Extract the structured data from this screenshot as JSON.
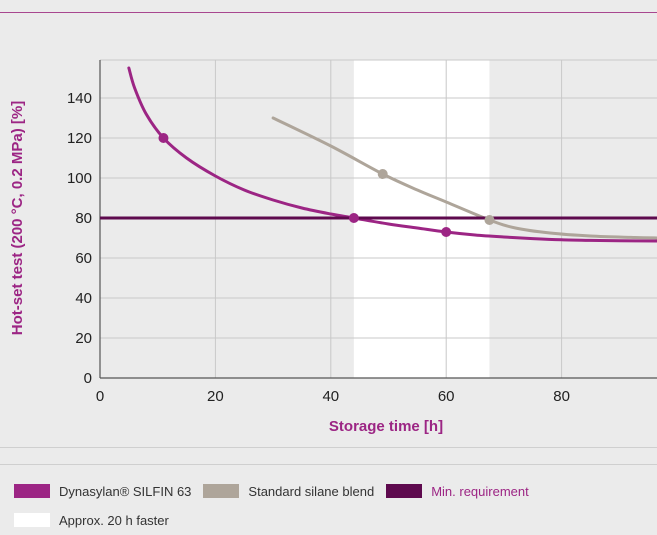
{
  "colors": {
    "background": "#ebebeb",
    "grid": "#c8c8c8",
    "purple": "#9c2584",
    "gray": "#aea59a",
    "dark_purple": "#5e0a4e",
    "highlight": "#ffffff",
    "rule_purple": "#a8478f",
    "rule_gray": "#cfcfcf"
  },
  "chart_data": {
    "type": "line",
    "xlabel": "Storage time [h]",
    "ylabel": "Hot-set test (200 °C, 0.2 MPa) [%]",
    "xlim": [
      0,
      97
    ],
    "ylim": [
      0,
      157
    ],
    "x_ticks": [
      0,
      20,
      40,
      60,
      80
    ],
    "y_ticks": [
      0,
      20,
      40,
      60,
      80,
      100,
      120,
      140
    ],
    "grid": true,
    "highlight_band": {
      "x": [
        44,
        67.5
      ],
      "label": "Approx. 20 h faster"
    },
    "series": [
      {
        "name": "Dynasylan® SILFIN 63",
        "color": "#9c2584",
        "curve": [
          [
            5,
            155
          ],
          [
            6,
            145
          ],
          [
            8,
            132
          ],
          [
            11,
            120
          ],
          [
            15,
            110
          ],
          [
            20,
            101
          ],
          [
            25,
            94
          ],
          [
            30,
            89
          ],
          [
            35,
            85
          ],
          [
            40,
            82
          ],
          [
            44,
            80
          ],
          [
            50,
            77
          ],
          [
            55,
            75
          ],
          [
            60,
            73
          ],
          [
            65,
            71.5
          ],
          [
            70,
            70.5
          ],
          [
            75,
            69.7
          ],
          [
            80,
            69.1
          ],
          [
            85,
            68.8
          ],
          [
            90,
            68.6
          ],
          [
            97,
            68.5
          ]
        ],
        "markers": [
          [
            11,
            120
          ],
          [
            44,
            80
          ],
          [
            60,
            73
          ]
        ]
      },
      {
        "name": "Standard silane blend",
        "color": "#aea59a",
        "curve": [
          [
            30,
            130
          ],
          [
            40,
            116
          ],
          [
            49,
            102
          ],
          [
            55,
            94
          ],
          [
            60,
            88
          ],
          [
            67.5,
            79
          ],
          [
            72,
            75
          ],
          [
            78,
            72.5
          ],
          [
            85,
            71
          ],
          [
            92,
            70.3
          ],
          [
            97,
            70
          ]
        ],
        "markers": [
          [
            49,
            102
          ],
          [
            67.5,
            79
          ]
        ]
      },
      {
        "name": "Min. requirement",
        "color": "#5e0a4e",
        "constant": 80
      }
    ]
  },
  "legend": {
    "items": [
      {
        "label": "Dynasylan® SILFIN 63",
        "color": "#9c2584"
      },
      {
        "label": "Standard silane blend",
        "color": "#aea59a"
      },
      {
        "label": "Min. requirement",
        "color": "#5e0a4e"
      }
    ],
    "band_label": "Approx. 20 h faster"
  }
}
